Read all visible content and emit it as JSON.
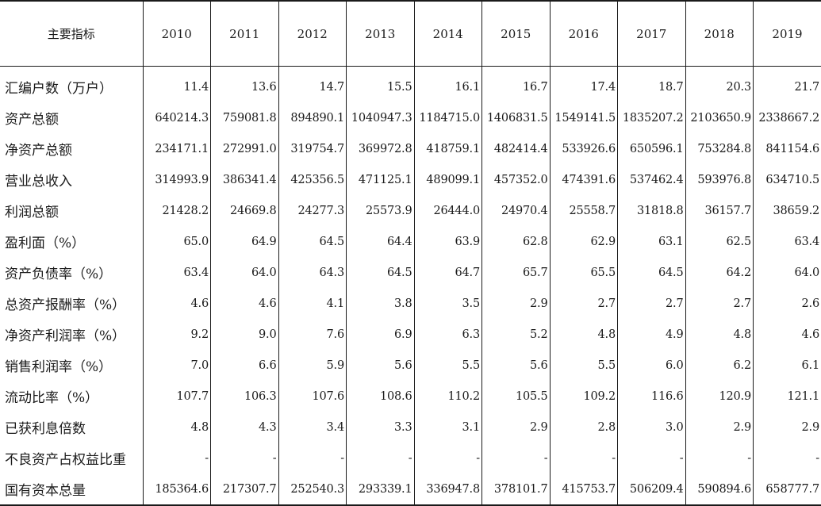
{
  "table": {
    "header_label": "主要指标",
    "years": [
      "2010",
      "2011",
      "2012",
      "2013",
      "2014",
      "2015",
      "2016",
      "2017",
      "2018",
      "2019"
    ],
    "rows": [
      {
        "label": "汇编户数（万户）",
        "values": [
          "11.4",
          "13.6",
          "14.7",
          "15.5",
          "16.1",
          "16.7",
          "17.4",
          "18.7",
          "20.3",
          "21.7"
        ]
      },
      {
        "label": "资产总额",
        "values": [
          "640214.3",
          "759081.8",
          "894890.1",
          "1040947.3",
          "1184715.0",
          "1406831.5",
          "1549141.5",
          "1835207.2",
          "2103650.9",
          "2338667.2"
        ]
      },
      {
        "label": "净资产总额",
        "values": [
          "234171.1",
          "272991.0",
          "319754.7",
          "369972.8",
          "418759.1",
          "482414.4",
          "533926.6",
          "650596.1",
          "753284.8",
          "841154.6"
        ]
      },
      {
        "label": "营业总收入",
        "values": [
          "314993.9",
          "386341.4",
          "425356.5",
          "471125.1",
          "489099.1",
          "457352.0",
          "474391.6",
          "537462.4",
          "593976.8",
          "634710.5"
        ]
      },
      {
        "label": "利润总额",
        "values": [
          "21428.2",
          "24669.8",
          "24277.3",
          "25573.9",
          "26444.0",
          "24970.4",
          "25558.7",
          "31818.8",
          "36157.7",
          "38659.2"
        ]
      },
      {
        "label": "盈利面（%）",
        "values": [
          "65.0",
          "64.9",
          "64.5",
          "64.4",
          "63.9",
          "62.8",
          "62.9",
          "63.1",
          "62.5",
          "63.4"
        ]
      },
      {
        "label": "资产负债率（%）",
        "values": [
          "63.4",
          "64.0",
          "64.3",
          "64.5",
          "64.7",
          "65.7",
          "65.5",
          "64.5",
          "64.2",
          "64.0"
        ]
      },
      {
        "label": "总资产报酬率（%）",
        "values": [
          "4.6",
          "4.6",
          "4.1",
          "3.8",
          "3.5",
          "2.9",
          "2.7",
          "2.7",
          "2.7",
          "2.6"
        ]
      },
      {
        "label": "净资产利润率（%）",
        "values": [
          "9.2",
          "9.0",
          "7.6",
          "6.9",
          "6.3",
          "5.2",
          "4.8",
          "4.9",
          "4.8",
          "4.6"
        ]
      },
      {
        "label": "销售利润率（%）",
        "values": [
          "7.0",
          "6.6",
          "5.9",
          "5.6",
          "5.5",
          "5.6",
          "5.5",
          "6.0",
          "6.2",
          "6.1"
        ]
      },
      {
        "label": "流动比率（%）",
        "values": [
          "107.7",
          "106.3",
          "107.6",
          "108.6",
          "110.2",
          "105.5",
          "109.2",
          "116.6",
          "120.9",
          "121.1"
        ]
      },
      {
        "label": "已获利息倍数",
        "values": [
          "4.8",
          "4.3",
          "3.4",
          "3.3",
          "3.1",
          "2.9",
          "2.8",
          "3.0",
          "2.9",
          "2.9"
        ]
      },
      {
        "label": "不良资产占权益比重",
        "values": [
          "-",
          "-",
          "-",
          "-",
          "-",
          "-",
          "-",
          "-",
          "-",
          "-"
        ]
      },
      {
        "label": "国有资本总量",
        "values": [
          "185364.6",
          "217307.7",
          "252540.3",
          "293339.1",
          "336947.8",
          "378101.7",
          "415753.7",
          "506209.4",
          "590894.6",
          "658777.7"
        ]
      }
    ]
  }
}
